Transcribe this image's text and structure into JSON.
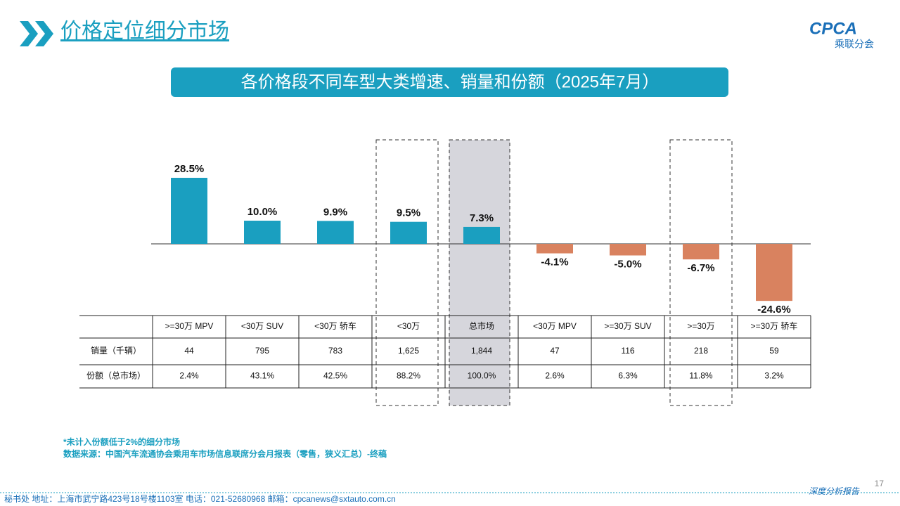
{
  "header": {
    "title": "价格定位细分市场",
    "logo": "CPCA",
    "logo_sub": "乘联分会"
  },
  "chart_data": {
    "type": "bar",
    "title": "各价格段不同车型大类增速、销量和份额（2025年7月）",
    "categories": [
      ">=30万 MPV",
      "<30万 SUV",
      "<30万 轿车",
      "<30万",
      "总市场",
      "<30万 MPV",
      ">=30万 SUV",
      ">=30万",
      ">=30万 轿车"
    ],
    "values": [
      28.5,
      10.0,
      9.9,
      9.5,
      7.3,
      -4.1,
      -5.0,
      -6.7,
      -24.6
    ],
    "value_labels": [
      "28.5%",
      "10.0%",
      "9.9%",
      "9.5%",
      "7.3%",
      "-4.1%",
      "-5.0%",
      "-6.7%",
      "-24.6%"
    ],
    "colors": [
      "#1a9fc0",
      "#1a9fc0",
      "#1a9fc0",
      "#1a9fc0",
      "#1a9fc0",
      "#d9825f",
      "#d9825f",
      "#d9825f",
      "#d9825f"
    ]
  },
  "table": {
    "rows": [
      [
        "销量（千辆）",
        "44",
        "795",
        "783",
        "1,625",
        "1,844",
        "47",
        "116",
        "218",
        "59"
      ],
      [
        "份额（总市场）",
        "2.4%",
        "43.1%",
        "42.5%",
        "88.2%",
        "100.0%",
        "2.6%",
        "6.3%",
        "11.8%",
        "3.2%"
      ]
    ]
  },
  "notes": [
    "*未计入份额低于2%的细分市场",
    "数据来源：中国汽车流通协会乘用车市场信息联席分会月报表（零售，狭义汇总）-终稿"
  ],
  "footer": {
    "address": "秘书处   地址：上海市武宁路423号18号楼1103室   电话：021-52680968   邮箱：cpcanews@sxtauto.com.cn",
    "report": "深度分析报告",
    "page": "17"
  }
}
